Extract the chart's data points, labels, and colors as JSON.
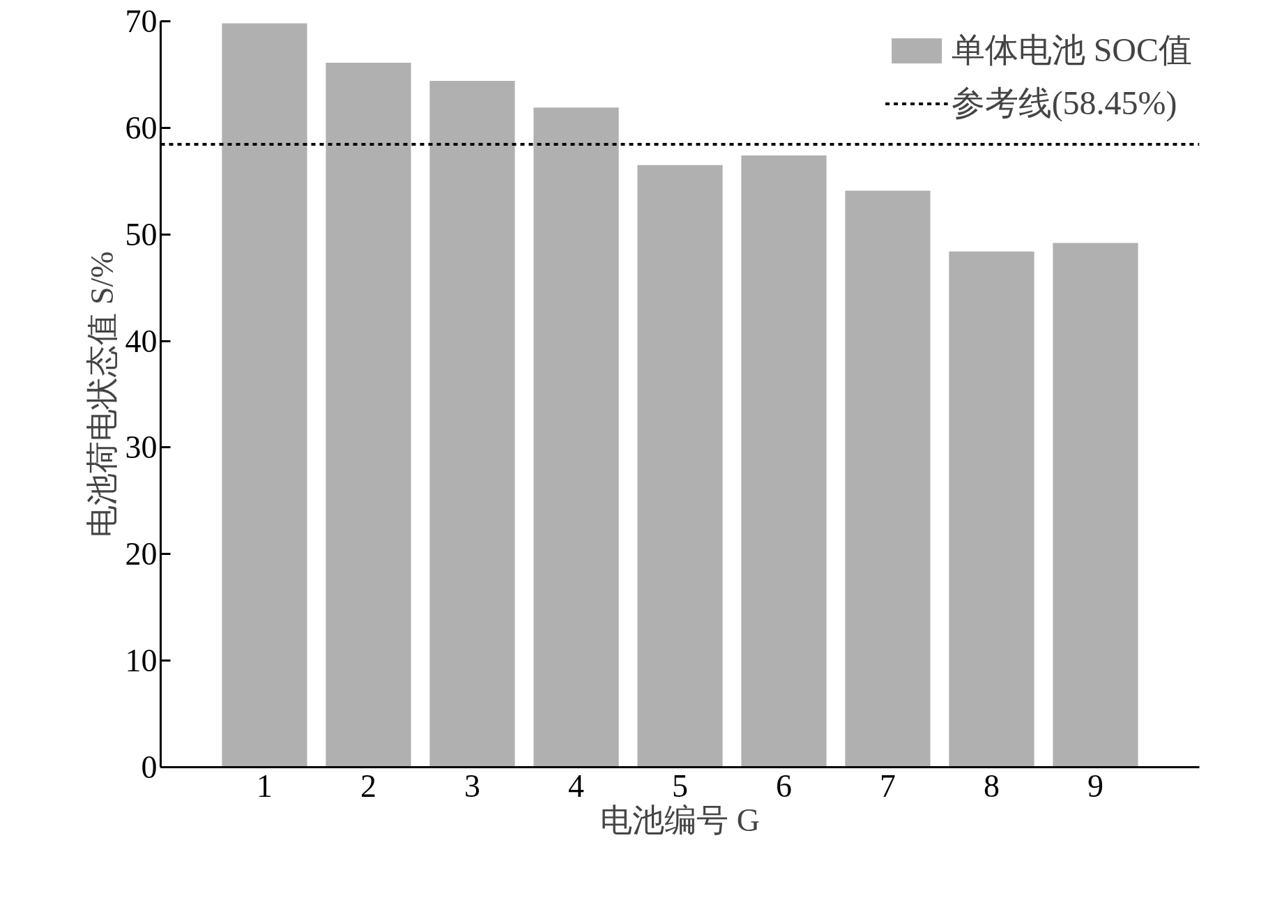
{
  "chart_data": {
    "type": "bar",
    "xlabel": "电池编号 G",
    "ylabel": "电池荷电状态值 S/%",
    "categories": [
      "1",
      "2",
      "3",
      "4",
      "5",
      "6",
      "7",
      "8",
      "9"
    ],
    "series": [
      {
        "name": "单体电池 SOC值",
        "color": "#b0b0b0",
        "values": [
          69.8,
          66.1,
          64.4,
          61.9,
          56.5,
          57.4,
          54.1,
          48.4,
          49.2
        ]
      }
    ],
    "ylim": [
      0,
      70
    ],
    "yticks": [
      0,
      10,
      20,
      30,
      40,
      50,
      60,
      70
    ],
    "grid": false,
    "legend": "top right",
    "ref_lines": [
      {
        "axis": "y",
        "value": 58.45,
        "label": "参考线(58.45%)",
        "color": "#000000",
        "line_style": "dashed"
      }
    ]
  }
}
